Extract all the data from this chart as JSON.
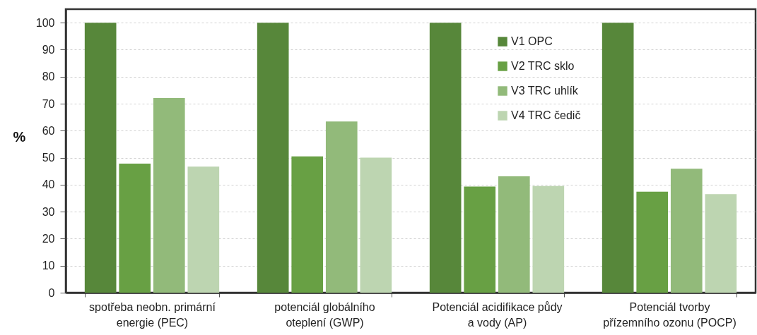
{
  "chart_data": {
    "type": "bar",
    "ylabel": "%",
    "categories": [
      "spotřeba neobn. primární\nenergie (PEC)",
      "potenciál globálního\noteplení  (GWP)",
      "Potenciál acidifikace půdy\na vody (AP)",
      "Potenciál tvorby\npřízemního ozonu (POCP)"
    ],
    "series": [
      {
        "name": "V1 OPC",
        "color": "#57873a",
        "values": [
          100,
          100,
          100,
          100
        ]
      },
      {
        "name": "V2 TRC sklo",
        "color": "#68a044",
        "values": [
          47.8,
          50.5,
          39.3,
          37.4
        ]
      },
      {
        "name": "V3 TRC uhlík",
        "color": "#92ba7a",
        "values": [
          72.1,
          63.4,
          43.1,
          45.9
        ]
      },
      {
        "name": "V4 TRC čedič",
        "color": "#bdd5b1",
        "values": [
          46.7,
          50,
          39.5,
          36.5
        ]
      }
    ],
    "ylim": [
      0,
      105
    ],
    "yticks": [
      0,
      10,
      20,
      30,
      40,
      50,
      60,
      70,
      80,
      90,
      100
    ],
    "grid": "y",
    "legend": "top right"
  }
}
